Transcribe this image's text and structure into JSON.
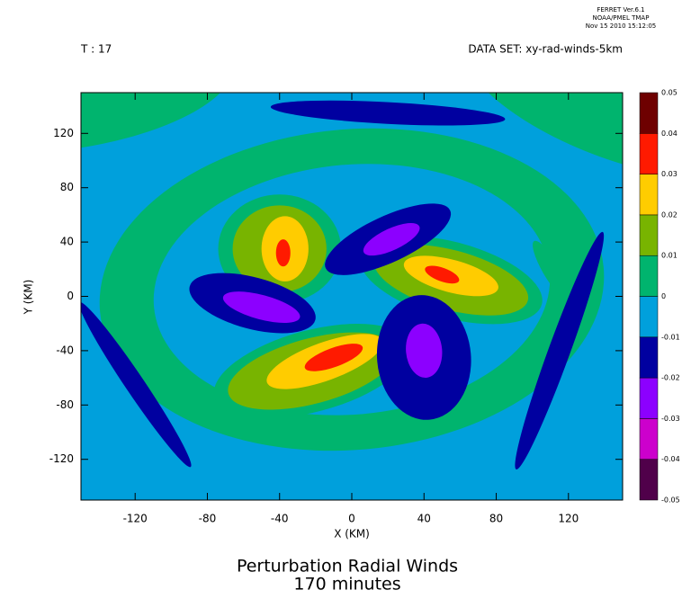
{
  "chart_data": {
    "type": "contour",
    "header": [
      "FERRET Ver.6.1",
      "NOAA/PMEL TMAP",
      "Nov 15 2010 15:12:05"
    ],
    "time_label": "T : 17",
    "dataset_label": "DATA SET: xy-rad-winds-5km",
    "title": "Perturbation Radial Winds",
    "subtitle": "170 minutes",
    "xlabel": "X (KM)",
    "ylabel": "Y (KM)",
    "xlim": [
      -150,
      150
    ],
    "ylim": [
      -150,
      150
    ],
    "xticks": [
      -120,
      -80,
      -40,
      0,
      40,
      80,
      120
    ],
    "yticks": [
      -120,
      -80,
      -40,
      0,
      40,
      80,
      120
    ],
    "levels": [
      -0.05,
      -0.04,
      -0.03,
      -0.02,
      -0.01,
      0,
      0.01,
      0.02,
      0.03,
      0.04,
      0.05
    ],
    "colors": [
      "#50004a",
      "#cc00cc",
      "#8c00ff",
      "#0000a0",
      "#00a0dc",
      "#00b46e",
      "#78b400",
      "#ffcc00",
      "#ff1a00",
      "#6e0000"
    ],
    "background_value": -0.01,
    "regions": [
      {
        "x": 150,
        "y": 150,
        "rx": 95,
        "ry": 50,
        "angle": -20,
        "value": 0
      },
      {
        "x": -150,
        "y": 150,
        "rx": 85,
        "ry": 40,
        "angle": 10,
        "value": 0
      },
      {
        "x": 0,
        "y": 5,
        "rx": 140,
        "ry": 118,
        "angle": 5,
        "value": 0
      },
      {
        "x": 0,
        "y": 5,
        "rx": 110,
        "ry": 92,
        "angle": 5,
        "value": -0.01
      },
      {
        "x": 20,
        "y": 135,
        "rx": 65,
        "ry": 8,
        "angle": -3,
        "value": -0.02
      },
      {
        "x": -120,
        "y": -65,
        "rx": 55,
        "ry": 7,
        "angle": -56,
        "value": -0.02
      },
      {
        "x": 115,
        "y": -40,
        "rx": 70,
        "ry": 8,
        "angle": 70,
        "value": -0.02
      },
      {
        "x": 110,
        "y": 20,
        "rx": 18,
        "ry": 6,
        "angle": -60,
        "value": 0
      },
      {
        "x": -40,
        "y": 35,
        "rx": 34,
        "ry": 40,
        "angle": 0,
        "value": 0
      },
      {
        "x": -40,
        "y": 35,
        "rx": 26,
        "ry": 32,
        "angle": 0,
        "value": 0.01
      },
      {
        "x": -37,
        "y": 35,
        "rx": 13,
        "ry": 24,
        "angle": 0,
        "value": 0.02
      },
      {
        "x": -38,
        "y": 32,
        "rx": 4,
        "ry": 10,
        "angle": 0,
        "value": 0.03
      },
      {
        "x": 55,
        "y": 12,
        "rx": 52,
        "ry": 28,
        "angle": -15,
        "value": 0
      },
      {
        "x": 55,
        "y": 12,
        "rx": 44,
        "ry": 22,
        "angle": -15,
        "value": 0.01
      },
      {
        "x": 55,
        "y": 15,
        "rx": 27,
        "ry": 12,
        "angle": -15,
        "value": 0.02
      },
      {
        "x": 50,
        "y": 16,
        "rx": 10,
        "ry": 5,
        "angle": -20,
        "value": 0.03
      },
      {
        "x": -22,
        "y": -55,
        "rx": 56,
        "ry": 30,
        "angle": 15,
        "value": 0
      },
      {
        "x": -22,
        "y": -55,
        "rx": 48,
        "ry": 24,
        "angle": 15,
        "value": 0.01
      },
      {
        "x": -15,
        "y": -48,
        "rx": 34,
        "ry": 14,
        "angle": 20,
        "value": 0.02
      },
      {
        "x": -10,
        "y": -45,
        "rx": 17,
        "ry": 7,
        "angle": 20,
        "value": 0.03
      },
      {
        "x": 20,
        "y": 42,
        "rx": 38,
        "ry": 17,
        "angle": 25,
        "value": -0.02
      },
      {
        "x": 22,
        "y": 42,
        "rx": 17,
        "ry": 8,
        "angle": 25,
        "value": -0.03
      },
      {
        "x": -55,
        "y": -5,
        "rx": 36,
        "ry": 19,
        "angle": -15,
        "value": -0.02
      },
      {
        "x": -50,
        "y": -8,
        "rx": 22,
        "ry": 9,
        "angle": -15,
        "value": -0.03
      },
      {
        "x": 40,
        "y": -45,
        "rx": 26,
        "ry": 46,
        "angle": 5,
        "value": -0.02
      },
      {
        "x": 40,
        "y": -40,
        "rx": 10,
        "ry": 20,
        "angle": 5,
        "value": -0.03
      }
    ]
  }
}
